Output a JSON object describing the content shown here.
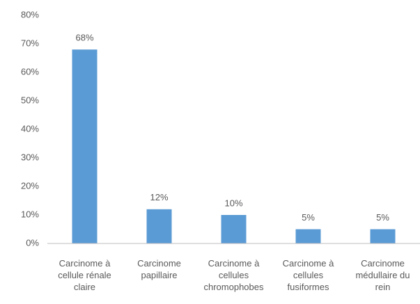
{
  "chart_data": {
    "type": "bar",
    "categories": [
      "Carcinome à cellule rénale claire",
      "Carcinome papillaire",
      "Carcinome à cellules chromophobes",
      "Carcinome à cellules fusiformes",
      "Carcinome médullaire du rein"
    ],
    "values": [
      68,
      12,
      10,
      5,
      5
    ],
    "value_labels": [
      "68%",
      "12%",
      "10%",
      "5%",
      "5%"
    ],
    "color": "#5b9bd5",
    "ylim": [
      0,
      80
    ],
    "yticks": [
      {
        "value": 0,
        "label": "0%"
      },
      {
        "value": 10,
        "label": "10%"
      },
      {
        "value": 20,
        "label": "20%"
      },
      {
        "value": 30,
        "label": "30%"
      },
      {
        "value": 40,
        "label": "40%"
      },
      {
        "value": 50,
        "label": "50%"
      },
      {
        "value": 60,
        "label": "60%"
      },
      {
        "value": 70,
        "label": "70%"
      },
      {
        "value": 80,
        "label": "80%"
      }
    ],
    "grid": false
  }
}
